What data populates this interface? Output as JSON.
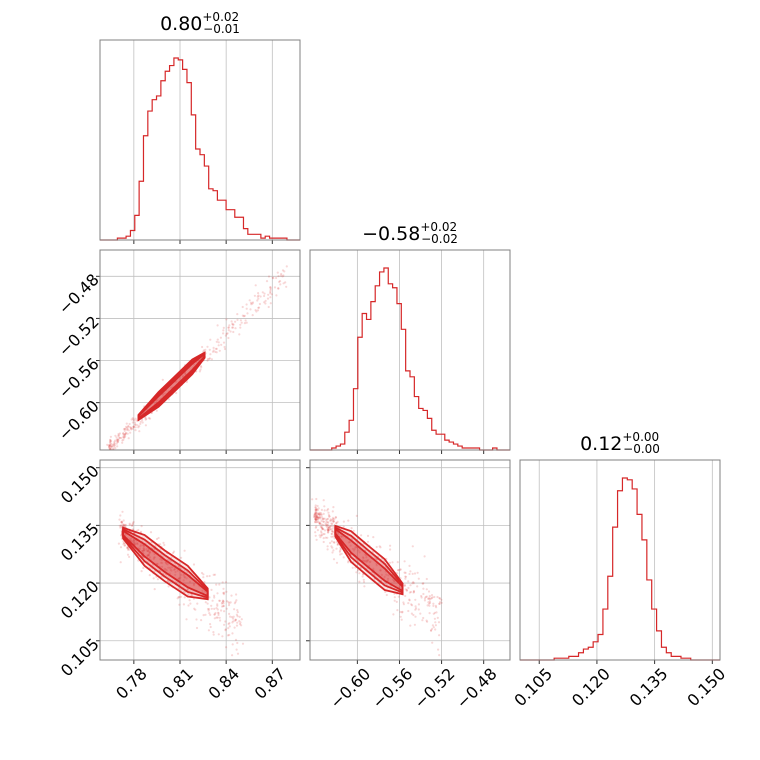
{
  "colors": {
    "accent": "#d62728",
    "grid": "#c0c0c0",
    "frame": "#808080"
  },
  "chart_data": {
    "type": "corner",
    "parameters": [
      {
        "title_value": "0.80",
        "err_plus": "+0.02",
        "err_minus": "−0.01",
        "range": [
          0.758,
          0.888
        ],
        "ticks": [
          0.78,
          0.81,
          0.84,
          0.87
        ],
        "tick_labels": [
          "0.78",
          "0.81",
          "0.84",
          "0.87"
        ]
      },
      {
        "title_value": "−0.58",
        "err_plus": "+0.02",
        "err_minus": "−0.02",
        "range": [
          -0.645,
          -0.455
        ],
        "ticks": [
          -0.6,
          -0.56,
          -0.52,
          -0.48
        ],
        "tick_labels": [
          "−0.60",
          "−0.56",
          "−0.52",
          "−0.48"
        ]
      },
      {
        "title_value": "0.12",
        "err_plus": "+0.00",
        "err_minus": "−0.00",
        "range": [
          0.1,
          0.152
        ],
        "ticks": [
          0.105,
          0.12,
          0.135,
          0.15
        ],
        "tick_labels": [
          "0.105",
          "0.120",
          "0.135",
          "0.150"
        ]
      }
    ],
    "histograms": [
      {
        "param": 0,
        "counts": [
          0,
          0,
          0,
          0,
          1,
          1,
          2,
          5,
          13,
          31,
          55,
          68,
          74,
          76,
          84,
          89,
          92,
          96,
          95,
          90,
          83,
          66,
          48,
          45,
          39,
          27,
          26,
          21,
          21,
          16,
          16,
          12,
          12,
          6,
          3,
          3,
          3,
          1,
          2,
          1,
          1,
          1,
          1,
          0,
          0,
          0
        ]
      },
      {
        "param": 1,
        "counts": [
          0,
          0,
          0,
          0,
          0,
          1,
          2,
          3,
          9,
          15,
          31,
          57,
          69,
          66,
          75,
          83,
          90,
          92,
          84,
          82,
          74,
          61,
          40,
          37,
          27,
          21,
          20,
          16,
          10,
          8,
          8,
          5,
          4,
          3,
          2,
          1,
          1,
          1,
          1,
          0,
          0,
          0,
          1,
          0,
          0,
          0
        ]
      },
      {
        "param": 2,
        "counts": [
          0,
          0,
          0,
          0,
          0,
          0,
          0,
          1,
          1,
          1,
          2,
          2,
          4,
          6,
          7,
          10,
          14,
          28,
          46,
          73,
          93,
          100,
          99,
          94,
          80,
          66,
          44,
          28,
          16,
          7,
          4,
          2,
          2,
          1,
          1,
          0,
          0,
          0,
          0,
          0,
          0
        ]
      }
    ],
    "scatter": [
      {
        "x_param": 0,
        "y_param": 1,
        "ridge_x": [
          0.764,
          0.775,
          0.79,
          0.8,
          0.81,
          0.82,
          0.835,
          0.85,
          0.865,
          0.88
        ],
        "ridge_y": [
          -0.642,
          -0.628,
          -0.608,
          -0.594,
          -0.579,
          -0.565,
          -0.543,
          -0.521,
          -0.499,
          -0.477
        ],
        "contour_x": [
          0.783,
          0.796,
          0.806,
          0.818,
          0.826
        ],
        "contour_y": [
          -0.614,
          -0.597,
          -0.583,
          -0.566,
          -0.555
        ],
        "contour_halfwidth": [
          0.007,
          0.005,
          0.003
        ]
      },
      {
        "x_param": 0,
        "y_param": 2,
        "ridge_x": [
          0.772,
          0.78,
          0.79,
          0.8,
          0.81,
          0.82,
          0.83,
          0.84,
          0.85
        ],
        "ridge_y": [
          0.1335,
          0.1305,
          0.1275,
          0.1245,
          0.1215,
          0.1185,
          0.1155,
          0.1125,
          0.1095
        ],
        "contour_x": [
          0.773,
          0.787,
          0.8,
          0.815,
          0.828
        ],
        "contour_y": [
          0.133,
          0.1285,
          0.1245,
          0.1205,
          0.1172
        ],
        "contour_halfwidth": [
          0.004,
          0.0028,
          0.0016
        ]
      },
      {
        "x_param": 1,
        "y_param": 2,
        "ridge_x": [
          -0.64,
          -0.625,
          -0.61,
          -0.595,
          -0.58,
          -0.565,
          -0.55,
          -0.535,
          -0.52
        ],
        "ridge_y": [
          0.1375,
          0.1335,
          0.1295,
          0.1265,
          0.1235,
          0.1205,
          0.1175,
          0.1145,
          0.1115
        ],
        "contour_x": [
          -0.621,
          -0.606,
          -0.59,
          -0.574,
          -0.557
        ],
        "contour_y": [
          0.1335,
          0.1295,
          0.1258,
          0.1222,
          0.1185
        ],
        "contour_halfwidth": [
          0.004,
          0.0028,
          0.0016
        ]
      }
    ]
  }
}
